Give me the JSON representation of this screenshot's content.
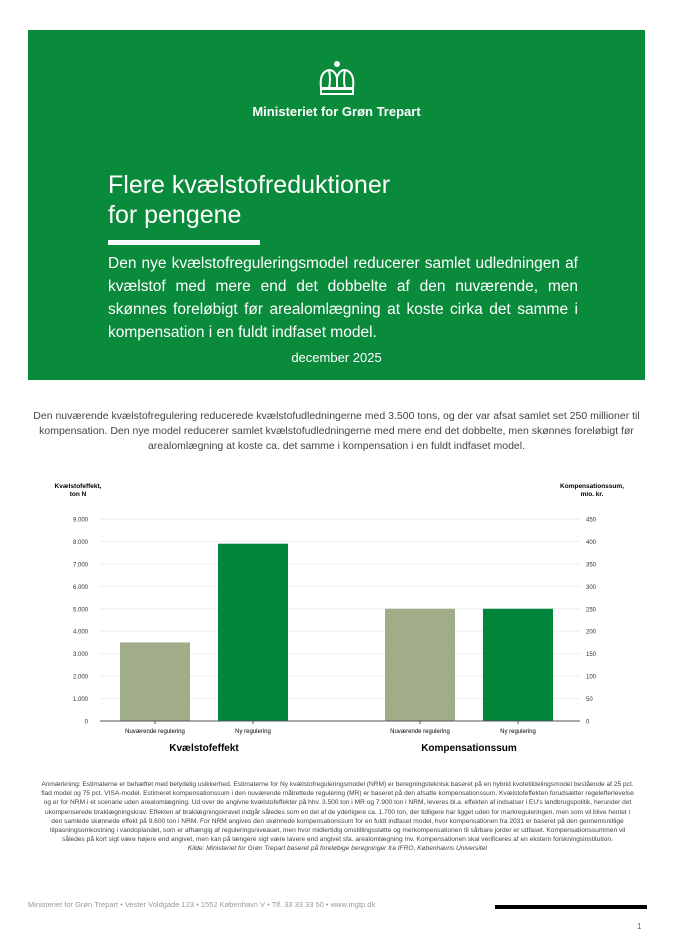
{
  "header": {
    "ministry": "Ministeriet for Grøn Trepart",
    "logo": "crown-icon",
    "brand_color": "#0a8a3b",
    "title_line1": "Flere kvælstofreduktioner",
    "title_line2": "for pengene",
    "lead": "Den nye kvælstofreguleringsmodel reducerer samlet udledningen af kvælstof med mere end det dobbelte af den nuværende, men skønnes foreløbigt før arealomlægning at koste cirka det samme i kompensation i en fuldt indfaset model.",
    "date": "december 2025"
  },
  "intro": "Den nuværende kvælstofregulering reducerede kvælstofudledningerne med 3.500 tons, og der var afsat samlet set 250 millioner til kompensation. Den nye model reducerer samlet kvælstofudledningerne med mere end det dobbelte, men skønnes foreløbigt før arealomlægning at koste ca. det samme i kompensation i en fuldt indfaset model.",
  "chart_data": {
    "type": "bar",
    "y_left": {
      "label_line1": "Kvælstofeffekt,",
      "label_line2": "ton N",
      "range": [
        0,
        9000
      ],
      "ticks": [
        "0",
        "1.000",
        "2.000",
        "3.000",
        "4.000",
        "5.000",
        "6.000",
        "7.000",
        "8.000",
        "9.000"
      ]
    },
    "y_right": {
      "label_line1": "Kompensationssum,",
      "label_line2": "mio. kr.",
      "range": [
        0,
        450
      ],
      "ticks": [
        "0",
        "50",
        "100",
        "150",
        "200",
        "250",
        "300",
        "350",
        "400",
        "450"
      ]
    },
    "grid": true,
    "groups": [
      {
        "name": "Kvælstofeffekt",
        "axis": "left",
        "categories": [
          "Nuværende regulering",
          "Ny regulering"
        ],
        "values": [
          3500,
          7900
        ],
        "colors": [
          "#a0ad88",
          "#00853a"
        ]
      },
      {
        "name": "Kompensationssum",
        "axis": "right",
        "categories": [
          "Nuværende regulering",
          "Ny regulering"
        ],
        "values": [
          250,
          250
        ],
        "colors": [
          "#a0ad88",
          "#00853a"
        ]
      }
    ]
  },
  "note": "Anmærkning: Estimaterne er behæftet med betydelig usikkerhed. Estimaterne for Ny kvælstofreguleringsmodel (NRM) er beregningsteknisk baseret på en hybrid kvotetildelingsmodel bestående af 25 pct. flad model og 75 pct. VISA-model. Estimeret kompensationssum i den nuværende målrettede regulering (MR) er baseret på den afsatte kompensationssum. Kvælstofeffekten forudsætter regelefterlevelse og er for NRM i et scenarie uden arealomlægning. Ud over de angivne kvælstofeffekter på hhv. 3.500 ton i MR og 7.900 ton i NRM, leveres bl.a. effekten af indsatser i EU's landbrugspolitik, herunder det ukompenserede braklægningskrav. Effekten af braklægningskravet indgår således som en del af de yderligere ca. 1.700 ton, der tidligere har ligget uden for markreguleringen, men som vil blive hentet i den samlede skønnede effekt på 9.600 ton i NRM. For NRM angives den skønnede kompensationssum for en fuldt indfaset model, hvor kompensationen fra 2031 er baseret på den gennemsnitlige tilpasningsomkostning i vandoplandet, som er afhængig af reguleringsniveauet, men hvor midlertidig omstillingsstøtte og merkompensationen til sårbare jorder er udfaset. Kompensationssummen vil således på kort sigt være højere end angivet, men kan på længere sigt være lavere end angivet sfa. arealomlægning mv. Kompensationen skal verificeres af en ekstern forskningsinstitution.",
  "source": "Kilde: Ministeriet for Grøn Trepart baseret på foreløbige beregninger fra IFRO, Københavns Universitet",
  "footer": {
    "address": "Ministeriet for Grøn Trepart • Vester Voldgade 123 • 1552 København V • Tlf. 33 33 33 50 • www.mgtp.dk",
    "page": "1"
  }
}
